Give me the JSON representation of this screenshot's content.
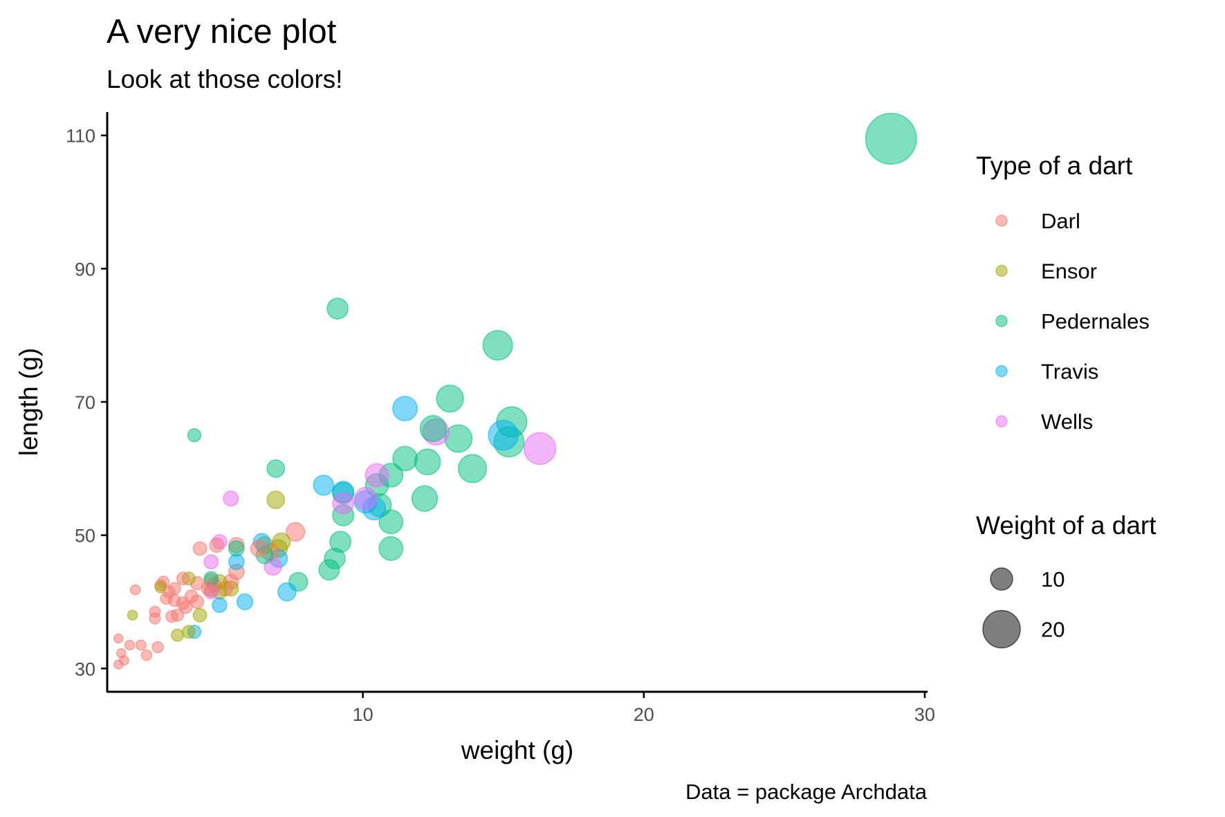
{
  "chart_data": {
    "type": "scatter",
    "title": "A very nice plot",
    "subtitle": "Look at those colors!",
    "xlabel": "weight (g)",
    "ylabel": "length (g)",
    "caption": "Data = package Archdata",
    "xlim": [
      0.9,
      30.1
    ],
    "ylim": [
      26.5,
      113.5
    ],
    "xticks": [
      10,
      20,
      30
    ],
    "yticks": [
      30,
      50,
      70,
      90,
      110
    ],
    "grid": false,
    "color_legend": {
      "title": "Type of a dart",
      "placement": "right",
      "entries": [
        {
          "name": "Darl",
          "color": "#F8766D"
        },
        {
          "name": "Ensor",
          "color": "#A3A500"
        },
        {
          "name": "Pedernales",
          "color": "#00BF7D"
        },
        {
          "name": "Travis",
          "color": "#00B0F6"
        },
        {
          "name": "Wells",
          "color": "#E76BF3"
        }
      ]
    },
    "size_legend": {
      "title": "Weight of a dart",
      "placement": "right",
      "values": [
        10,
        20
      ]
    },
    "point_opacity": 0.5,
    "series": [
      {
        "name": "Darl",
        "points": [
          [
            1.3,
            30.6
          ],
          [
            1.5,
            31.2
          ],
          [
            1.4,
            32.3
          ],
          [
            1.3,
            34.5
          ],
          [
            1.7,
            33.5
          ],
          [
            2.1,
            33.5
          ],
          [
            2.3,
            32.0
          ],
          [
            2.7,
            33.2
          ],
          [
            2.6,
            37.5
          ],
          [
            2.6,
            38.5
          ],
          [
            3.2,
            37.8
          ],
          [
            3.4,
            38.0
          ],
          [
            3.7,
            39.2
          ],
          [
            3.0,
            40.5
          ],
          [
            3.3,
            40.2
          ],
          [
            3.6,
            39.8
          ],
          [
            3.9,
            40.8
          ],
          [
            4.1,
            40.0
          ],
          [
            2.8,
            42.5
          ],
          [
            3.1,
            41.5
          ],
          [
            2.9,
            43.0
          ],
          [
            3.3,
            42.0
          ],
          [
            3.6,
            43.5
          ],
          [
            4.1,
            42.8
          ],
          [
            4.5,
            42.0
          ],
          [
            4.6,
            43.2
          ],
          [
            4.7,
            42.5
          ],
          [
            5.1,
            42.0
          ],
          [
            5.5,
            44.5
          ],
          [
            4.2,
            48.0
          ],
          [
            4.8,
            48.5
          ],
          [
            5.3,
            43.0
          ],
          [
            5.5,
            48.5
          ],
          [
            6.3,
            48.0
          ],
          [
            7.6,
            50.5
          ],
          [
            6.7,
            47.5
          ],
          [
            1.9,
            41.8
          ]
        ]
      },
      {
        "name": "Ensor",
        "points": [
          [
            1.8,
            38.0
          ],
          [
            2.8,
            42.2
          ],
          [
            3.4,
            35.0
          ],
          [
            3.8,
            35.5
          ],
          [
            4.2,
            38.0
          ],
          [
            3.8,
            43.5
          ],
          [
            4.6,
            41.8
          ],
          [
            4.9,
            43.0
          ],
          [
            4.9,
            41.5
          ],
          [
            5.3,
            42.0
          ],
          [
            6.5,
            48.5
          ],
          [
            6.9,
            55.3
          ],
          [
            7.1,
            49.0
          ],
          [
            7.0,
            48.0
          ]
        ]
      },
      {
        "name": "Pedernales",
        "points": [
          [
            4.0,
            65.0
          ],
          [
            4.6,
            43.5
          ],
          [
            5.5,
            48.0
          ],
          [
            6.5,
            47.0
          ],
          [
            6.9,
            60.0
          ],
          [
            7.7,
            43.0
          ],
          [
            9.1,
            84.0
          ],
          [
            9.0,
            46.5
          ],
          [
            9.2,
            49.0
          ],
          [
            8.8,
            44.8
          ],
          [
            9.3,
            56.3
          ],
          [
            9.3,
            53.0
          ],
          [
            10.5,
            57.5
          ],
          [
            10.6,
            54.5
          ],
          [
            11.0,
            59.0
          ],
          [
            11.0,
            52.0
          ],
          [
            11.0,
            48.0
          ],
          [
            11.5,
            61.5
          ],
          [
            12.2,
            55.5
          ],
          [
            12.3,
            61.0
          ],
          [
            12.5,
            66.0
          ],
          [
            13.1,
            70.5
          ],
          [
            13.4,
            64.5
          ],
          [
            13.9,
            60.0
          ],
          [
            14.8,
            78.5
          ],
          [
            15.3,
            67.0
          ],
          [
            15.2,
            64.0
          ],
          [
            28.8,
            109.5
          ]
        ]
      },
      {
        "name": "Travis",
        "points": [
          [
            4.0,
            35.5
          ],
          [
            4.9,
            39.5
          ],
          [
            5.5,
            46.0
          ],
          [
            5.8,
            40.0
          ],
          [
            6.4,
            49.0
          ],
          [
            7.0,
            46.5
          ],
          [
            7.3,
            41.5
          ],
          [
            8.6,
            57.5
          ],
          [
            9.3,
            56.5
          ],
          [
            10.1,
            55.0
          ],
          [
            10.4,
            54.0
          ],
          [
            11.5,
            69.0
          ],
          [
            15.0,
            65.0
          ]
        ]
      },
      {
        "name": "Wells",
        "points": [
          [
            4.9,
            49.0
          ],
          [
            4.6,
            46.0
          ],
          [
            4.6,
            41.5
          ],
          [
            5.3,
            55.5
          ],
          [
            6.8,
            45.3
          ],
          [
            9.3,
            54.8
          ],
          [
            10.1,
            55.5
          ],
          [
            10.5,
            59.0
          ],
          [
            12.6,
            65.5
          ],
          [
            16.3,
            63.0
          ]
        ]
      }
    ]
  }
}
